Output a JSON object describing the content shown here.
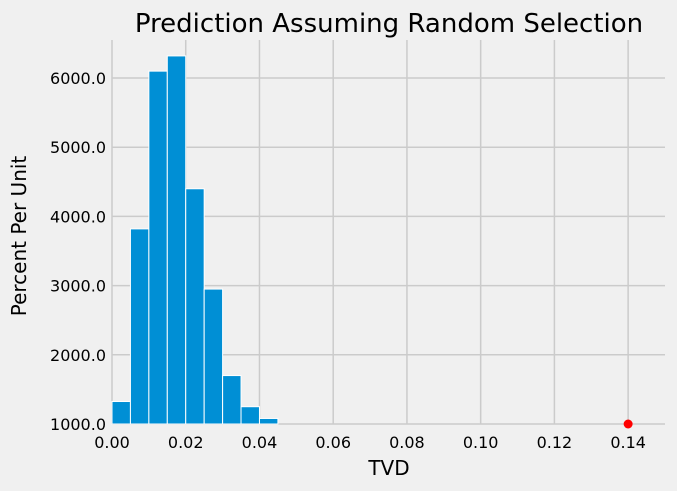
{
  "chart_data": {
    "type": "bar",
    "title": "Prediction Assuming Random Selection",
    "xlabel": "TVD",
    "ylabel": "Percent Per Unit",
    "xlim": [
      0.0,
      0.15
    ],
    "ylim": [
      1000,
      6550
    ],
    "x_ticks": [
      0.0,
      0.02,
      0.04,
      0.06,
      0.08,
      0.1,
      0.12,
      0.14
    ],
    "x_tick_labels": [
      "0.00",
      "0.02",
      "0.04",
      "0.06",
      "0.08",
      "0.10",
      "0.12",
      "0.14"
    ],
    "y_ticks": [
      1000,
      2000,
      3000,
      4000,
      5000,
      6000
    ],
    "y_tick_labels": [
      "1000.0",
      "2000.0",
      "3000.0",
      "4000.0",
      "5000.0",
      "6000.0"
    ],
    "bin_edges": [
      0.0,
      0.005,
      0.01,
      0.015,
      0.02,
      0.025,
      0.03,
      0.035,
      0.04,
      0.045
    ],
    "values": [
      1325,
      3820,
      6100,
      6320,
      4400,
      2950,
      1700,
      1250,
      1080
    ],
    "marker_point": {
      "x": 0.14,
      "y": 1000
    },
    "grid": true,
    "colors": {
      "bar": "#008fd5",
      "bar_edge": "#ffffff",
      "marker": "#ff0000",
      "background": "#f0f0f0",
      "grid": "#cbcbcb"
    }
  }
}
